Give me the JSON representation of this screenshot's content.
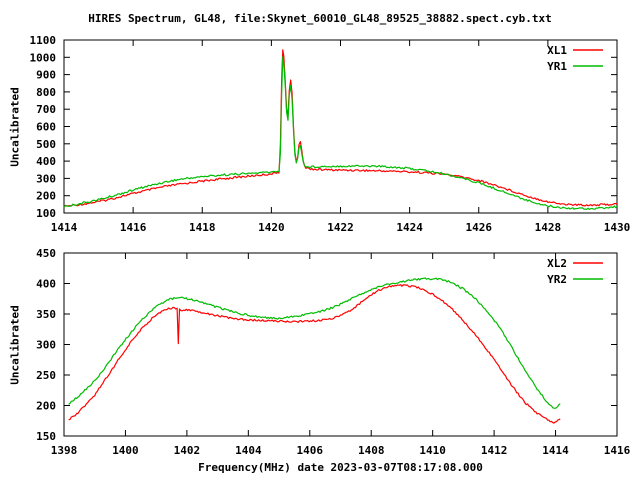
{
  "background_color": "#ffffff",
  "chart_data": [
    {
      "type": "line",
      "title": "HIRES Spectrum, GL48, file:Skynet_60010_GL48_89525_38882.spect.cyb.txt",
      "ylabel": "Uncalibrated",
      "xlabel": "",
      "xlim": [
        1414,
        1430
      ],
      "ylim": [
        100,
        1100
      ],
      "x_ticks": [
        1414,
        1416,
        1418,
        1420,
        1422,
        1424,
        1426,
        1428,
        1430
      ],
      "y_ticks": [
        100,
        200,
        300,
        400,
        500,
        600,
        700,
        800,
        900,
        1000,
        1100
      ],
      "grid": false,
      "legend_position": "top-right-inside",
      "series": [
        {
          "name": "XL1",
          "color": "#ff0000",
          "points": [
            [
              1414.0,
              138
            ],
            [
              1414.3,
              145
            ],
            [
              1414.6,
              153
            ],
            [
              1415.0,
              166
            ],
            [
              1415.4,
              183
            ],
            [
              1415.8,
              203
            ],
            [
              1416.2,
              222
            ],
            [
              1416.6,
              240
            ],
            [
              1417.0,
              256
            ],
            [
              1417.4,
              268
            ],
            [
              1417.8,
              279
            ],
            [
              1418.2,
              289
            ],
            [
              1418.6,
              298
            ],
            [
              1419.0,
              306
            ],
            [
              1419.4,
              314
            ],
            [
              1419.8,
              322
            ],
            [
              1420.1,
              329
            ],
            [
              1420.22,
              336
            ],
            [
              1420.26,
              500
            ],
            [
              1420.3,
              880
            ],
            [
              1420.33,
              1040
            ],
            [
              1420.36,
              1005
            ],
            [
              1420.4,
              870
            ],
            [
              1420.44,
              700
            ],
            [
              1420.48,
              660
            ],
            [
              1420.52,
              810
            ],
            [
              1420.56,
              865
            ],
            [
              1420.6,
              790
            ],
            [
              1420.64,
              600
            ],
            [
              1420.68,
              455
            ],
            [
              1420.72,
              400
            ],
            [
              1420.76,
              420
            ],
            [
              1420.8,
              490
            ],
            [
              1420.84,
              515
            ],
            [
              1420.88,
              465
            ],
            [
              1420.92,
              405
            ],
            [
              1420.96,
              372
            ],
            [
              1421.0,
              360
            ],
            [
              1421.3,
              352
            ],
            [
              1421.7,
              349
            ],
            [
              1422.0,
              348
            ],
            [
              1422.5,
              347
            ],
            [
              1423.0,
              344
            ],
            [
              1423.5,
              342
            ],
            [
              1424.0,
              338
            ],
            [
              1424.5,
              333
            ],
            [
              1425.0,
              324
            ],
            [
              1425.5,
              309
            ],
            [
              1426.0,
              288
            ],
            [
              1426.5,
              259
            ],
            [
              1427.0,
              225
            ],
            [
              1427.5,
              192
            ],
            [
              1428.0,
              165
            ],
            [
              1428.4,
              152
            ],
            [
              1428.8,
              147
            ],
            [
              1429.2,
              146
            ],
            [
              1429.6,
              148
            ],
            [
              1430.0,
              152
            ]
          ]
        },
        {
          "name": "YR1",
          "color": "#00bb00",
          "points": [
            [
              1414.0,
              137
            ],
            [
              1414.3,
              148
            ],
            [
              1414.6,
              160
            ],
            [
              1415.0,
              177
            ],
            [
              1415.4,
              198
            ],
            [
              1415.8,
              221
            ],
            [
              1416.2,
              244
            ],
            [
              1416.6,
              264
            ],
            [
              1417.0,
              282
            ],
            [
              1417.4,
              296
            ],
            [
              1417.8,
              306
            ],
            [
              1418.2,
              314
            ],
            [
              1418.6,
              320
            ],
            [
              1419.0,
              325
            ],
            [
              1419.4,
              329
            ],
            [
              1419.8,
              334
            ],
            [
              1420.1,
              338
            ],
            [
              1420.22,
              344
            ],
            [
              1420.26,
              450
            ],
            [
              1420.3,
              800
            ],
            [
              1420.33,
              1000
            ],
            [
              1420.36,
              965
            ],
            [
              1420.4,
              835
            ],
            [
              1420.44,
              680
            ],
            [
              1420.48,
              640
            ],
            [
              1420.52,
              780
            ],
            [
              1420.56,
              835
            ],
            [
              1420.6,
              760
            ],
            [
              1420.64,
              580
            ],
            [
              1420.68,
              440
            ],
            [
              1420.72,
              392
            ],
            [
              1420.76,
              412
            ],
            [
              1420.8,
              475
            ],
            [
              1420.84,
              492
            ],
            [
              1420.88,
              448
            ],
            [
              1420.92,
              396
            ],
            [
              1420.96,
              374
            ],
            [
              1421.0,
              366
            ],
            [
              1421.3,
              368
            ],
            [
              1421.7,
              370
            ],
            [
              1422.0,
              371
            ],
            [
              1422.5,
              372
            ],
            [
              1423.0,
              371
            ],
            [
              1423.5,
              366
            ],
            [
              1424.0,
              357
            ],
            [
              1424.5,
              344
            ],
            [
              1425.0,
              326
            ],
            [
              1425.5,
              303
            ],
            [
              1426.0,
              274
            ],
            [
              1426.5,
              239
            ],
            [
              1427.0,
              202
            ],
            [
              1427.5,
              167
            ],
            [
              1428.0,
              141
            ],
            [
              1428.4,
              131
            ],
            [
              1428.8,
              127
            ],
            [
              1429.2,
              126
            ],
            [
              1429.6,
              128
            ],
            [
              1430.0,
              137
            ]
          ]
        }
      ]
    },
    {
      "type": "line",
      "title": "",
      "ylabel": "Uncalibrated",
      "xlabel": "Frequency(MHz) date 2023-03-07T08:17:08.000",
      "xlim": [
        1398,
        1416
      ],
      "ylim": [
        150,
        450
      ],
      "x_ticks": [
        1398,
        1400,
        1402,
        1404,
        1406,
        1408,
        1410,
        1412,
        1414,
        1416
      ],
      "y_ticks": [
        150,
        200,
        250,
        300,
        350,
        400,
        450
      ],
      "grid": false,
      "legend_position": "top-right-inside",
      "series": [
        {
          "name": "XL2",
          "color": "#ff0000",
          "points": [
            [
              1398.15,
              176
            ],
            [
              1398.5,
              190
            ],
            [
              1399.0,
              217
            ],
            [
              1399.4,
              247
            ],
            [
              1399.8,
              277
            ],
            [
              1400.2,
              306
            ],
            [
              1400.6,
              330
            ],
            [
              1401.0,
              349
            ],
            [
              1401.4,
              360
            ],
            [
              1401.68,
              359
            ],
            [
              1401.72,
              302
            ],
            [
              1401.76,
              357
            ],
            [
              1402.2,
              356
            ],
            [
              1402.6,
              351
            ],
            [
              1403.0,
              347
            ],
            [
              1403.4,
              344
            ],
            [
              1403.8,
              341
            ],
            [
              1404.2,
              340
            ],
            [
              1404.6,
              339
            ],
            [
              1405.0,
              338
            ],
            [
              1405.4,
              338
            ],
            [
              1405.8,
              338
            ],
            [
              1406.2,
              339
            ],
            [
              1406.6,
              341
            ],
            [
              1407.0,
              347
            ],
            [
              1407.4,
              358
            ],
            [
              1407.8,
              374
            ],
            [
              1408.2,
              388
            ],
            [
              1408.6,
              395
            ],
            [
              1409.0,
              397
            ],
            [
              1409.4,
              395
            ],
            [
              1409.8,
              388
            ],
            [
              1410.2,
              376
            ],
            [
              1410.6,
              360
            ],
            [
              1411.0,
              339
            ],
            [
              1411.4,
              315
            ],
            [
              1411.8,
              289
            ],
            [
              1412.2,
              260
            ],
            [
              1412.6,
              231
            ],
            [
              1413.0,
              205
            ],
            [
              1413.4,
              187
            ],
            [
              1413.7,
              178
            ],
            [
              1413.95,
              172
            ],
            [
              1414.15,
              178
            ]
          ]
        },
        {
          "name": "YR2",
          "color": "#00bb00",
          "points": [
            [
              1398.15,
              203
            ],
            [
              1398.5,
              216
            ],
            [
              1399.0,
              240
            ],
            [
              1399.4,
              267
            ],
            [
              1399.8,
              295
            ],
            [
              1400.2,
              321
            ],
            [
              1400.6,
              344
            ],
            [
              1401.0,
              362
            ],
            [
              1401.4,
              374
            ],
            [
              1401.8,
              377
            ],
            [
              1402.2,
              373
            ],
            [
              1402.6,
              367
            ],
            [
              1403.0,
              361
            ],
            [
              1403.4,
              355
            ],
            [
              1403.8,
              350
            ],
            [
              1404.2,
              346
            ],
            [
              1404.6,
              344
            ],
            [
              1405.0,
              343
            ],
            [
              1405.4,
              345
            ],
            [
              1405.8,
              348
            ],
            [
              1406.2,
              352
            ],
            [
              1406.6,
              358
            ],
            [
              1407.0,
              366
            ],
            [
              1407.4,
              376
            ],
            [
              1407.8,
              386
            ],
            [
              1408.2,
              394
            ],
            [
              1408.6,
              399
            ],
            [
              1409.0,
              403
            ],
            [
              1409.4,
              406
            ],
            [
              1409.8,
              408
            ],
            [
              1410.2,
              407
            ],
            [
              1410.6,
              402
            ],
            [
              1411.0,
              391
            ],
            [
              1411.4,
              375
            ],
            [
              1411.8,
              353
            ],
            [
              1412.2,
              326
            ],
            [
              1412.6,
              293
            ],
            [
              1413.0,
              258
            ],
            [
              1413.4,
              227
            ],
            [
              1413.7,
              207
            ],
            [
              1413.95,
              194
            ],
            [
              1414.15,
              203
            ]
          ]
        }
      ]
    }
  ]
}
